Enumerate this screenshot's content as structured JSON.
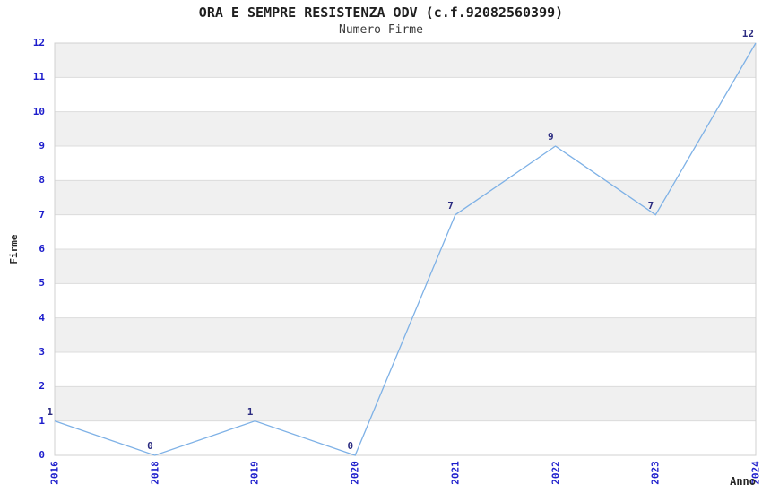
{
  "chart_data": {
    "type": "line",
    "title": "ORA E SEMPRE RESISTENZA ODV (c.f.92082560399)",
    "subtitle": "Numero Firme",
    "categories": [
      "2016",
      "2018",
      "2019",
      "2020",
      "2021",
      "2022",
      "2023",
      "2024"
    ],
    "values": [
      1,
      0,
      1,
      0,
      7,
      9,
      7,
      12
    ],
    "series_name": "Numero Firme",
    "xlabel": "Anno",
    "ylabel": "Firme",
    "ylim": [
      0,
      12
    ],
    "yticks": [
      0,
      1,
      2,
      3,
      4,
      5,
      6,
      7,
      8,
      9,
      10,
      11,
      12
    ],
    "x_tick_rotation": 90,
    "grid": "horizontal",
    "alternating_bands": true,
    "markers": "none",
    "legend": "none",
    "point_labels_visible": true,
    "colors": {
      "line": "#7EB1E6",
      "tick_label": "#1D1DCC",
      "point_label": "#2B2B80",
      "band": "#F0F0F0",
      "gridline": "#DCDCDC",
      "plot_border": "#D0D0D0",
      "title": "#1F1F1F",
      "subtitle": "#3C3C3C",
      "axis_label": "#262626",
      "background": "#FFFFFF"
    }
  }
}
